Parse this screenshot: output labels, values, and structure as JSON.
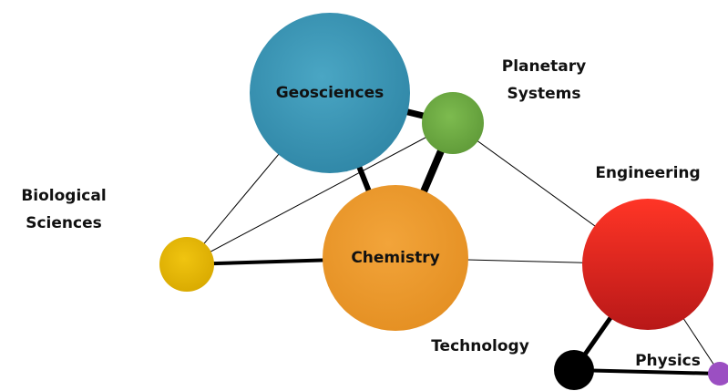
{
  "nodes": [
    {
      "label": [
        "Geosciences"
      ]
    },
    {
      "label": [
        "Planetary",
        "Systems"
      ]
    },
    {
      "label": [
        "Biological",
        "Sciences"
      ]
    },
    {
      "label": [
        "Chemistry"
      ]
    },
    {
      "label": [
        "Engineering"
      ]
    },
    {
      "label": [
        "Technology"
      ]
    },
    {
      "label": [
        "Physics"
      ]
    }
  ]
}
